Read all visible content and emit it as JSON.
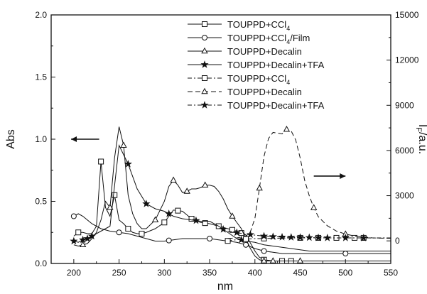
{
  "chart_data": {
    "type": "line",
    "xlabel": "nm",
    "ylabel_left": "Abs",
    "ylabel_right": "I_F/a.u.",
    "xlim": [
      175,
      550
    ],
    "ylim_left": [
      0.0,
      2.0
    ],
    "ylim_right": [
      -1500,
      15000
    ],
    "xticks": [
      200,
      250,
      300,
      350,
      400,
      450,
      500,
      550
    ],
    "xtick_labels": [
      "200",
      "250",
      "300",
      "350",
      "400",
      "450",
      "500",
      "550"
    ],
    "yticks_left": [
      0.0,
      0.5,
      1.0,
      1.5,
      2.0
    ],
    "ytick_labels_left": [
      "0.0",
      "0.5",
      "1.0",
      "1.5",
      "2.0"
    ],
    "yticks_right": [
      0,
      3000,
      6000,
      9000,
      12000,
      15000
    ],
    "ytick_labels_right": [
      "0",
      "3000",
      "6000",
      "9000",
      "12000",
      "15000"
    ],
    "grid": false,
    "legend_position": "top-right",
    "annotations": [
      {
        "type": "arrow",
        "direction": "left",
        "axis": "left",
        "x_from": 228,
        "x_to": 197,
        "y": 1.0
      },
      {
        "type": "arrow",
        "direction": "right",
        "axis": "right",
        "x_from": 465,
        "x_to": 500,
        "y": 4300
      }
    ],
    "series": [
      {
        "name": "TOUPPD+CCl4",
        "name_main": "TOUPPD+CCl",
        "name_sub": "4",
        "axis": "left",
        "style": "solid",
        "marker": "square",
        "x": [
          200,
          205,
          210,
          215,
          220,
          225,
          230,
          235,
          240,
          245,
          250,
          255,
          260,
          265,
          270,
          275,
          280,
          290,
          300,
          310,
          320,
          330,
          340,
          350,
          360,
          370,
          380,
          390,
          400,
          405,
          410,
          420,
          430,
          440,
          450,
          460,
          470,
          480,
          490,
          500,
          520,
          550
        ],
        "y": [
          0.22,
          0.25,
          0.25,
          0.24,
          0.24,
          0.3,
          0.82,
          0.45,
          0.38,
          0.55,
          0.35,
          0.32,
          0.28,
          0.25,
          0.24,
          0.24,
          0.25,
          0.28,
          0.33,
          0.43,
          0.42,
          0.36,
          0.33,
          0.32,
          0.3,
          0.28,
          0.26,
          0.23,
          0.1,
          0.05,
          0.03,
          0.02,
          0.02,
          0.02,
          0.02,
          0.02,
          0.02,
          0.02,
          0.02,
          0.02,
          0.02,
          0.02
        ],
        "marker_x": [
          205,
          230,
          245,
          260,
          275,
          300,
          315,
          330,
          345,
          360,
          375,
          385,
          410,
          430,
          440
        ]
      },
      {
        "name": "TOUPPD+CCl4/Film",
        "name_main": "TOUPPD+CCl",
        "name_sub": "4",
        "name_tail": "/Film",
        "axis": "left",
        "style": "solid",
        "marker": "circle",
        "x": [
          200,
          205,
          210,
          215,
          220,
          225,
          230,
          240,
          250,
          260,
          270,
          280,
          290,
          300,
          310,
          320,
          330,
          340,
          350,
          360,
          370,
          380,
          390,
          400,
          410,
          420,
          430,
          440,
          450,
          460,
          470,
          480,
          490,
          500,
          520,
          550
        ],
        "y": [
          0.38,
          0.4,
          0.38,
          0.35,
          0.32,
          0.3,
          0.28,
          0.26,
          0.25,
          0.24,
          0.22,
          0.2,
          0.18,
          0.18,
          0.19,
          0.2,
          0.2,
          0.2,
          0.2,
          0.19,
          0.18,
          0.17,
          0.15,
          0.12,
          0.1,
          0.09,
          0.08,
          0.08,
          0.08,
          0.08,
          0.08,
          0.08,
          0.08,
          0.08,
          0.08,
          0.08
        ],
        "marker_x": [
          200,
          250,
          305,
          350,
          390,
          410,
          500
        ]
      },
      {
        "name": "TOUPPD+Decalin",
        "axis": "left",
        "style": "solid",
        "marker": "triangle",
        "x": [
          200,
          205,
          210,
          215,
          220,
          225,
          230,
          235,
          240,
          245,
          250,
          255,
          260,
          265,
          270,
          275,
          280,
          290,
          300,
          305,
          310,
          315,
          320,
          325,
          330,
          335,
          340,
          345,
          350,
          355,
          360,
          365,
          370,
          375,
          380,
          385,
          390,
          395,
          400,
          405,
          410,
          420,
          430,
          440,
          450,
          460,
          470,
          480,
          500,
          550
        ],
        "y": [
          0.15,
          0.14,
          0.15,
          0.16,
          0.2,
          0.25,
          0.35,
          0.5,
          0.45,
          0.85,
          1.1,
          0.95,
          0.55,
          0.4,
          0.32,
          0.28,
          0.28,
          0.35,
          0.5,
          0.62,
          0.67,
          0.63,
          0.57,
          0.58,
          0.6,
          0.6,
          0.61,
          0.63,
          0.63,
          0.62,
          0.58,
          0.52,
          0.44,
          0.38,
          0.33,
          0.28,
          0.2,
          0.12,
          0.06,
          0.03,
          0.02,
          0.02,
          0.02,
          0.02,
          0.02,
          0.02,
          0.02,
          0.02,
          0.02,
          0.02
        ],
        "marker_x": [
          210,
          240,
          255,
          290,
          310,
          325,
          345,
          375,
          390,
          410,
          420,
          450
        ]
      },
      {
        "name": "TOUPPD+Decalin+TFA",
        "axis": "left",
        "style": "solid",
        "marker": "star",
        "x": [
          200,
          205,
          210,
          215,
          220,
          225,
          230,
          240,
          250,
          260,
          270,
          280,
          290,
          300,
          310,
          320,
          330,
          340,
          350,
          360,
          370,
          380,
          390,
          400,
          410,
          420,
          430,
          440,
          450,
          460,
          470,
          480,
          500,
          550
        ],
        "y": [
          0.18,
          0.17,
          0.19,
          0.2,
          0.22,
          0.24,
          0.26,
          0.3,
          0.95,
          0.8,
          0.6,
          0.48,
          0.44,
          0.42,
          0.38,
          0.36,
          0.35,
          0.34,
          0.34,
          0.3,
          0.25,
          0.2,
          0.18,
          0.17,
          0.15,
          0.14,
          0.13,
          0.12,
          0.11,
          0.1,
          0.1,
          0.1,
          0.1,
          0.1
        ],
        "marker_x": [
          200,
          210,
          215,
          220,
          260,
          280,
          305,
          335,
          365,
          385
        ]
      },
      {
        "name": "TOUPPD+CCl4",
        "name_main": "TOUPPD+CCl",
        "name_sub": "4",
        "axis": "right",
        "style": "dash-dot",
        "marker": "square",
        "x": [
          370,
          380,
          390,
          400,
          410,
          420,
          430,
          440,
          450,
          460,
          470,
          480,
          490,
          500,
          510,
          520,
          530,
          540,
          550
        ],
        "y": [
          0,
          80,
          120,
          150,
          160,
          170,
          180,
          190,
          200,
          200,
          200,
          200,
          200,
          200,
          200,
          200,
          200,
          200,
          200
        ],
        "marker_x": [
          370,
          390,
          410,
          450,
          470,
          490,
          510,
          520
        ]
      },
      {
        "name": "TOUPPD+Decalin",
        "axis": "right",
        "style": "dashed",
        "marker": "triangle",
        "x": [
          370,
          380,
          390,
          395,
          400,
          405,
          410,
          415,
          420,
          425,
          430,
          435,
          440,
          445,
          450,
          455,
          460,
          465,
          470,
          480,
          490,
          500,
          510,
          520,
          530,
          540,
          550
        ],
        "y": [
          150,
          200,
          300,
          600,
          1500,
          3500,
          5600,
          6800,
          7200,
          7150,
          7100,
          7400,
          7300,
          6700,
          5500,
          4000,
          3000,
          2200,
          1600,
          1000,
          650,
          450,
          320,
          250,
          200,
          180,
          170
        ],
        "marker_x": [
          405,
          435,
          465,
          500
        ]
      },
      {
        "name": "TOUPPD+Decalin+TFA",
        "axis": "right",
        "style": "dash-dot",
        "marker": "star",
        "x": [
          370,
          380,
          390,
          400,
          410,
          420,
          430,
          440,
          450,
          460,
          470,
          480,
          490,
          500,
          510,
          520,
          530,
          540,
          550
        ],
        "y": [
          650,
          550,
          450,
          380,
          320,
          280,
          250,
          240,
          230,
          220,
          210,
          200,
          200,
          200,
          200,
          200,
          190,
          190,
          190
        ],
        "marker_x": [
          380,
          395,
          410,
          420,
          430,
          440,
          450,
          460,
          470,
          480,
          500,
          520
        ]
      }
    ]
  }
}
